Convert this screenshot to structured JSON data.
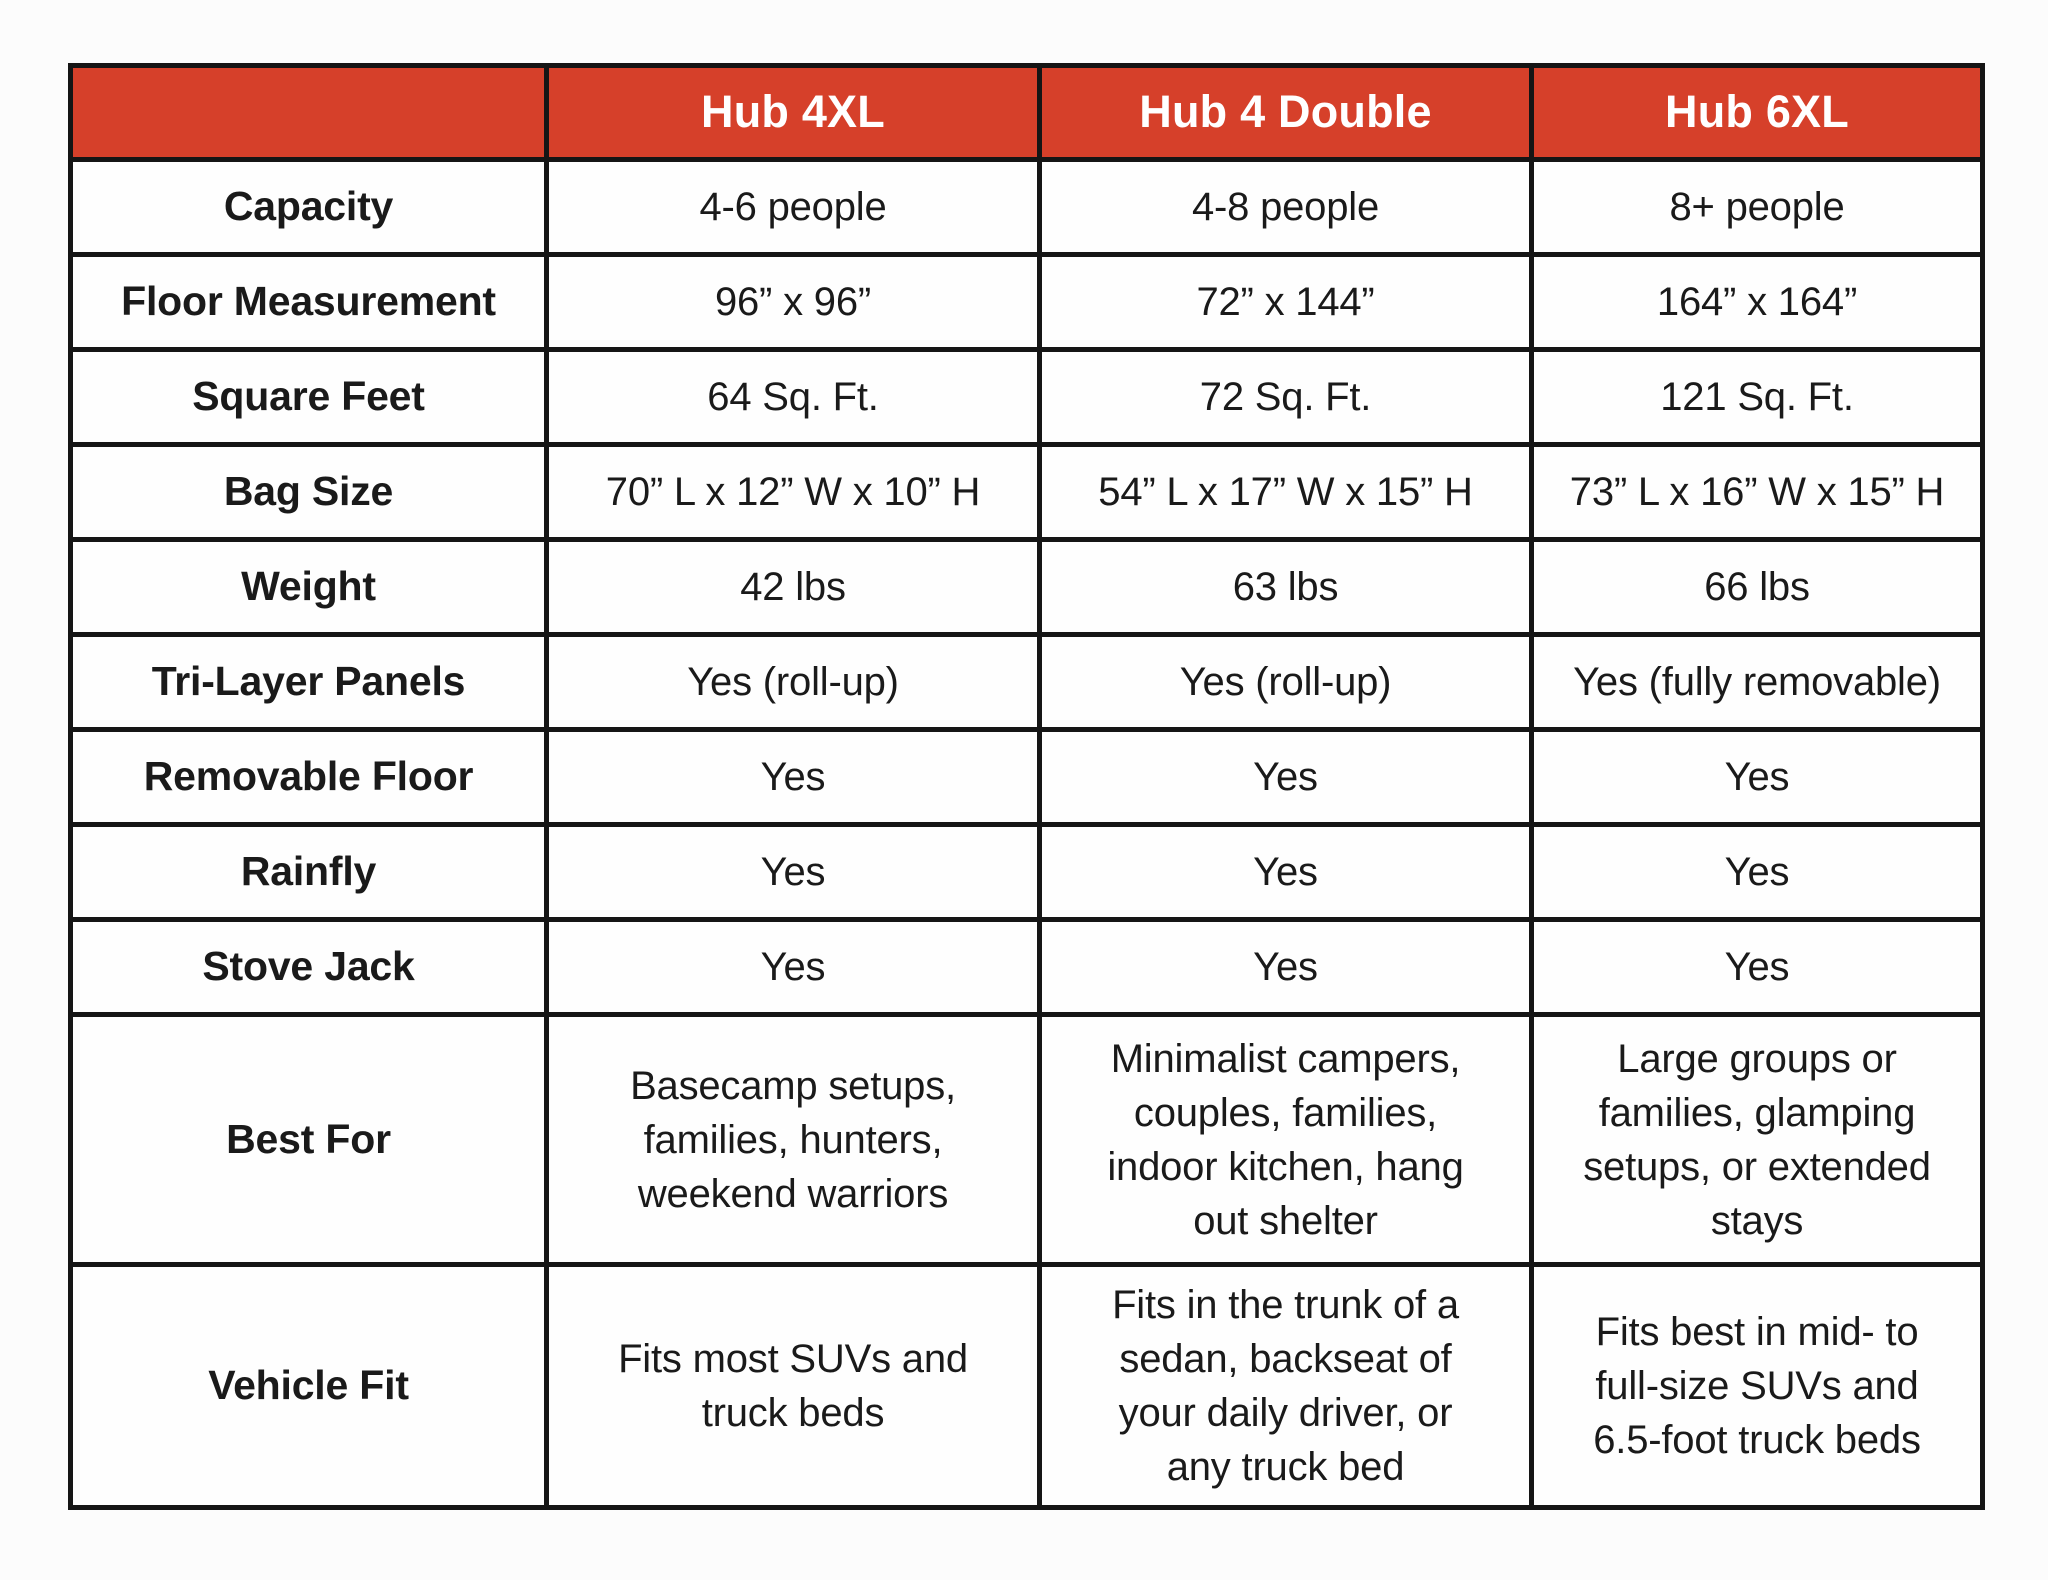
{
  "style": {
    "header_bg": "#d6402a",
    "header_text": "#ffffff",
    "border": "#151515",
    "text": "#1a1a1a",
    "page_bg": "#fcfcfc",
    "cell_bg": "#fefefe"
  },
  "chart_data": {
    "type": "table",
    "columns": [
      "",
      "Hub 4XL",
      "Hub 4 Double",
      "Hub 6XL"
    ],
    "rows": [
      {
        "label": "Capacity",
        "values": [
          "4-6 people",
          "4-8 people",
          "8+ people"
        ],
        "size": "std"
      },
      {
        "label": "Floor Measurement",
        "values": [
          "96” x 96”",
          "72” x 144”",
          "164” x 164”"
        ],
        "size": "std"
      },
      {
        "label": "Square Feet",
        "values": [
          "64 Sq. Ft.",
          "72 Sq. Ft.",
          "121 Sq. Ft."
        ],
        "size": "std"
      },
      {
        "label": "Bag Size",
        "values": [
          "70” L x 12” W x 10” H",
          "54” L x 17” W x 15” H",
          "73” L x 16” W x 15” H"
        ],
        "size": "std"
      },
      {
        "label": "Weight",
        "values": [
          "42 lbs",
          "63 lbs",
          "66 lbs"
        ],
        "size": "std"
      },
      {
        "label": "Tri-Layer Panels",
        "values": [
          "Yes (roll-up)",
          "Yes (roll-up)",
          "Yes (fully removable)"
        ],
        "size": "std"
      },
      {
        "label": "Removable Floor",
        "values": [
          "Yes",
          "Yes",
          "Yes"
        ],
        "size": "std"
      },
      {
        "label": "Rainfly",
        "values": [
          "Yes",
          "Yes",
          "Yes"
        ],
        "size": "std"
      },
      {
        "label": "Stove Jack",
        "values": [
          "Yes",
          "Yes",
          "Yes"
        ],
        "size": "std"
      },
      {
        "label": "Best For",
        "values": [
          "Basecamp setups, families, hunters, weekend warriors",
          "Minimalist campers, couples, families, indoor kitchen, hang out shelter",
          "Large groups or families, glamping setups, or extended stays"
        ],
        "size": "tall-1"
      },
      {
        "label": "Vehicle Fit",
        "values": [
          "Fits most SUVs and truck beds",
          "Fits in the trunk of a sedan, backseat of your daily driver, or any truck bed",
          "Fits best in mid- to full-size SUVs and 6.5-foot truck beds"
        ],
        "size": "tall-2"
      }
    ]
  }
}
